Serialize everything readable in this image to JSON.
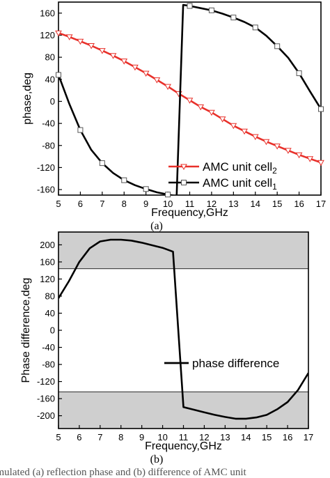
{
  "chart_data": [
    {
      "type": "line",
      "panel_label": "(a)",
      "xlabel": "Frequency,GHz",
      "ylabel": "phase,deg",
      "xlim": [
        5,
        17
      ],
      "ylim": [
        -170,
        180
      ],
      "xticks": [
        5,
        6,
        7,
        8,
        9,
        10,
        11,
        12,
        13,
        14,
        15,
        16,
        17
      ],
      "yticks": [
        -160,
        -120,
        -80,
        -40,
        0,
        40,
        80,
        120,
        160
      ],
      "legend_position": "bottom-right",
      "series": [
        {
          "name": "AMC unit cell",
          "name_subscript": "2",
          "color": "#e8302a",
          "marker": "triangle-down",
          "x": [
            5,
            5.5,
            6,
            6.5,
            7,
            7.5,
            8,
            8.5,
            9,
            9.5,
            10,
            10.5,
            11,
            11.5,
            12,
            12.5,
            13,
            13.5,
            14,
            14.5,
            15,
            15.5,
            16,
            16.5,
            17
          ],
          "y": [
            124,
            117,
            109,
            101,
            92,
            83,
            73,
            62,
            51,
            39,
            27,
            14,
            2,
            -10,
            -20,
            -32,
            -44,
            -54,
            -64,
            -73,
            -81,
            -89,
            -97,
            -104,
            -111
          ]
        },
        {
          "name": "AMC unit cell",
          "name_subscript": "1",
          "color": "#000000",
          "marker": "square",
          "x": [
            5,
            5.5,
            6,
            6.5,
            7,
            7.5,
            8,
            8.5,
            9,
            9.5,
            10,
            10.4,
            10.7,
            11,
            11.5,
            12,
            12.5,
            13,
            13.5,
            14,
            14.5,
            15,
            15.5,
            16,
            16.5,
            17
          ],
          "y": [
            48,
            -5,
            -52,
            -88,
            -112,
            -130,
            -143,
            -152,
            -159,
            -165,
            -169,
            -172,
            175,
            173,
            169,
            165,
            159,
            152,
            144,
            134,
            119,
            100,
            79,
            51,
            18,
            -14
          ],
          "marker_x": [
            5,
            6,
            7,
            8,
            9,
            10,
            11,
            12,
            13,
            14,
            15,
            16,
            17
          ]
        }
      ]
    },
    {
      "type": "line",
      "panel_label": "(b)",
      "xlabel": "Frequency,GHz",
      "ylabel": "Phase difference,deg",
      "xlim": [
        5,
        17
      ],
      "ylim": [
        -230,
        230
      ],
      "xticks": [
        5,
        6,
        7,
        8,
        9,
        10,
        11,
        12,
        13,
        14,
        15,
        16,
        17
      ],
      "yticks": [
        -200,
        -160,
        -120,
        -80,
        -40,
        0,
        40,
        80,
        120,
        160,
        200
      ],
      "shaded_bands": [
        [
          144,
          230
        ],
        [
          -230,
          -144
        ]
      ],
      "legend_position": "center-right",
      "series": [
        {
          "name": "phase difference",
          "color": "#000000",
          "x": [
            5,
            5.5,
            6,
            6.5,
            7,
            7.5,
            8,
            8.5,
            9,
            9.5,
            10,
            10.5,
            11,
            11.5,
            12,
            12.5,
            13,
            13.5,
            14,
            14.5,
            15,
            15.5,
            16,
            16.5,
            17
          ],
          "y": [
            75,
            115,
            160,
            192,
            208,
            212,
            212,
            210,
            205,
            199,
            193,
            184,
            -180,
            -186,
            -192,
            -198,
            -203,
            -207,
            -207,
            -204,
            -198,
            -185,
            -168,
            -140,
            -100
          ]
        }
      ]
    }
  ],
  "caption": "Simulated (a) reflection phase and (b) difference of AMC unit"
}
